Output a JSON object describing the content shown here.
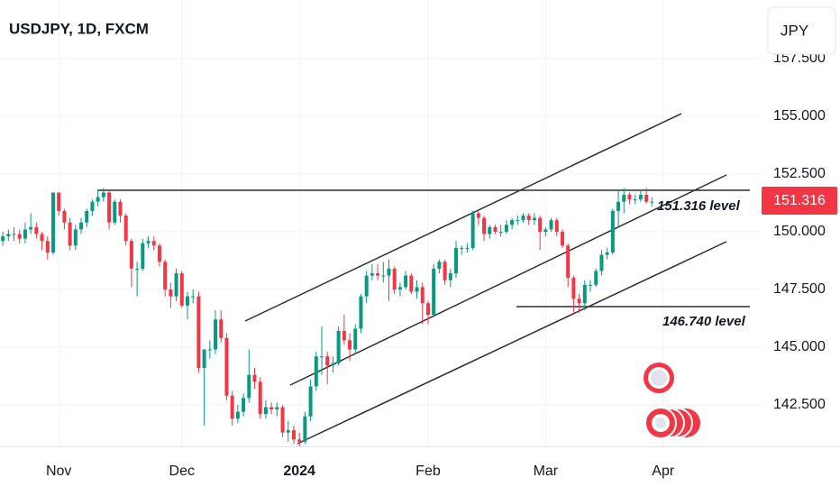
{
  "chart_data": {
    "type": "candlestick",
    "title": "USDJPY, 1D, FXCM",
    "currency_button": "JPY",
    "last_price_label": "151.316",
    "annotations": [
      "151.316 level",
      "146.740 level"
    ],
    "up_color": "#089981",
    "down_color": "#f23645",
    "grid": true,
    "ylim": [
      140.7,
      160.04
    ],
    "yticks": [
      {
        "value": 157.5,
        "label": "157.500"
      },
      {
        "value": 155,
        "label": "155.000"
      },
      {
        "value": 152.5,
        "label": "152.500"
      },
      {
        "value": 150,
        "label": "150.000"
      },
      {
        "value": 147.5,
        "label": "147.500"
      },
      {
        "value": 145,
        "label": "145.000"
      },
      {
        "value": 142.5,
        "label": "142.500"
      }
    ],
    "xlim": [
      -0.5,
      135.6
    ],
    "xticks": [
      {
        "value": 10,
        "label": "Nov"
      },
      {
        "value": 32,
        "label": "Dec"
      },
      {
        "value": 53,
        "label": "2024"
      },
      {
        "value": 76,
        "label": "Feb"
      },
      {
        "value": 97,
        "label": "Mar"
      },
      {
        "value": 118,
        "label": "Apr"
      }
    ],
    "candles": [
      [
        149.6,
        150.0,
        149.4,
        149.8
      ],
      [
        149.8,
        150.1,
        149.6,
        149.9
      ],
      [
        149.9,
        150.2,
        149.6,
        149.9
      ],
      [
        149.9,
        150.1,
        149.5,
        149.7
      ],
      [
        149.7,
        150.4,
        149.5,
        150.1
      ],
      [
        150.1,
        150.8,
        149.9,
        150.2
      ],
      [
        150.2,
        150.4,
        149.7,
        149.9
      ],
      [
        149.9,
        150.0,
        149.2,
        149.6
      ],
      [
        149.6,
        149.8,
        148.8,
        149.1
      ],
      [
        149.1,
        151.7,
        149.0,
        151.7
      ],
      [
        151.7,
        151.7,
        150.7,
        150.9
      ],
      [
        150.9,
        151.0,
        150.1,
        150.4
      ],
      [
        150.4,
        150.6,
        149.2,
        149.4
      ],
      [
        149.4,
        150.3,
        149.2,
        150.1
      ],
      [
        150.1,
        150.6,
        149.9,
        150.4
      ],
      [
        150.4,
        151.0,
        150.2,
        150.9
      ],
      [
        150.9,
        151.4,
        150.7,
        151.3
      ],
      [
        151.3,
        151.8,
        151.1,
        151.5
      ],
      [
        151.5,
        151.9,
        151.3,
        151.7
      ],
      [
        151.7,
        151.8,
        150.1,
        150.4
      ],
      [
        150.4,
        151.4,
        150.3,
        151.3
      ],
      [
        151.3,
        151.4,
        150.4,
        150.7
      ],
      [
        150.7,
        150.8,
        149.4,
        149.6
      ],
      [
        149.6,
        149.7,
        147.6,
        148.4
      ],
      [
        148.4,
        148.7,
        147.2,
        148.4
      ],
      [
        148.4,
        149.7,
        148.3,
        149.5
      ],
      [
        149.5,
        149.8,
        149.3,
        149.6
      ],
      [
        149.6,
        149.8,
        149.2,
        149.4
      ],
      [
        149.4,
        149.5,
        148.5,
        148.7
      ],
      [
        148.7,
        148.8,
        147.2,
        147.5
      ],
      [
        147.5,
        147.8,
        146.7,
        147.2
      ],
      [
        147.2,
        148.4,
        147.0,
        148.2
      ],
      [
        148.2,
        148.3,
        146.7,
        146.8
      ],
      [
        146.8,
        147.4,
        146.2,
        147.2
      ],
      [
        147.2,
        147.5,
        146.9,
        147.2
      ],
      [
        147.2,
        147.4,
        143.9,
        144.1
      ],
      [
        144.1,
        144.9,
        141.6,
        144.9
      ],
      [
        144.9,
        145.3,
        144.5,
        144.9
      ],
      [
        144.9,
        146.6,
        144.7,
        146.2
      ],
      [
        146.2,
        146.6,
        145.2,
        145.4
      ],
      [
        145.4,
        145.6,
        142.7,
        142.9
      ],
      [
        142.9,
        143.1,
        141.6,
        141.9
      ],
      [
        141.9,
        142.5,
        141.7,
        142.2
      ],
      [
        142.2,
        143.0,
        142.0,
        142.8
      ],
      [
        142.8,
        144.9,
        142.6,
        143.8
      ],
      [
        143.8,
        144.1,
        143.2,
        143.5
      ],
      [
        143.5,
        143.7,
        141.9,
        142.1
      ],
      [
        142.1,
        142.7,
        141.9,
        142.4
      ],
      [
        142.4,
        142.6,
        142.1,
        142.3
      ],
      [
        142.3,
        142.6,
        142.0,
        142.4
      ],
      [
        142.4,
        142.5,
        141.1,
        141.3
      ],
      [
        141.3,
        141.8,
        140.9,
        141.4
      ],
      [
        141.4,
        141.6,
        140.8,
        141.0
      ],
      [
        141.0,
        141.3,
        140.7,
        140.9
      ],
      [
        140.9,
        142.2,
        140.8,
        142.0
      ],
      [
        142.0,
        143.6,
        141.8,
        143.3
      ],
      [
        143.3,
        144.8,
        143.1,
        144.6
      ],
      [
        144.6,
        145.9,
        143.8,
        144.6
      ],
      [
        144.6,
        144.8,
        143.4,
        144.2
      ],
      [
        144.2,
        144.6,
        143.9,
        144.3
      ],
      [
        144.3,
        145.9,
        144.2,
        145.7
      ],
      [
        145.7,
        146.4,
        145.1,
        145.3
      ],
      [
        145.3,
        145.6,
        144.4,
        144.9
      ],
      [
        144.9,
        146.0,
        144.7,
        145.8
      ],
      [
        145.8,
        147.3,
        145.6,
        147.2
      ],
      [
        147.2,
        148.3,
        146.9,
        148.1
      ],
      [
        148.1,
        148.6,
        147.9,
        148.2
      ],
      [
        148.2,
        148.6,
        147.9,
        148.1
      ],
      [
        148.1,
        148.7,
        147.8,
        148.1
      ],
      [
        148.1,
        148.8,
        147.0,
        148.4
      ],
      [
        148.4,
        148.5,
        147.3,
        147.5
      ],
      [
        147.5,
        147.8,
        147.2,
        147.6
      ],
      [
        147.6,
        148.3,
        147.5,
        148.1
      ],
      [
        148.1,
        148.2,
        147.3,
        147.4
      ],
      [
        147.4,
        147.9,
        147.1,
        147.6
      ],
      [
        147.6,
        147.8,
        146.0,
        146.9
      ],
      [
        146.9,
        147.0,
        146.0,
        146.4
      ],
      [
        146.4,
        148.6,
        146.3,
        148.4
      ],
      [
        148.4,
        148.8,
        148.2,
        148.7
      ],
      [
        148.7,
        148.8,
        147.7,
        147.9
      ],
      [
        147.9,
        148.4,
        147.6,
        148.2
      ],
      [
        148.2,
        149.6,
        148.0,
        149.3
      ],
      [
        149.3,
        149.4,
        149.0,
        149.3
      ],
      [
        149.3,
        149.5,
        149.1,
        149.3
      ],
      [
        149.3,
        150.9,
        149.2,
        150.8
      ],
      [
        150.8,
        150.9,
        150.3,
        150.6
      ],
      [
        150.6,
        150.7,
        149.6,
        149.9
      ],
      [
        149.9,
        150.3,
        149.7,
        150.2
      ],
      [
        150.2,
        150.3,
        149.9,
        150.0
      ],
      [
        150.0,
        150.3,
        149.8,
        150.0
      ],
      [
        150.0,
        150.5,
        149.9,
        150.3
      ],
      [
        150.3,
        150.6,
        150.1,
        150.5
      ],
      [
        150.5,
        150.7,
        150.3,
        150.5
      ],
      [
        150.5,
        150.8,
        150.4,
        150.7
      ],
      [
        150.7,
        150.8,
        150.3,
        150.5
      ],
      [
        150.5,
        150.8,
        150.3,
        150.6
      ],
      [
        150.6,
        150.7,
        149.2,
        150.0
      ],
      [
        150.0,
        150.2,
        149.8,
        150.1
      ],
      [
        150.1,
        150.6,
        150.0,
        150.5
      ],
      [
        150.5,
        150.6,
        149.8,
        150.0
      ],
      [
        150.0,
        150.1,
        149.3,
        149.4
      ],
      [
        149.4,
        149.5,
        147.6,
        148.0
      ],
      [
        148.0,
        148.1,
        146.5,
        147.1
      ],
      [
        147.1,
        147.3,
        146.5,
        146.9
      ],
      [
        146.9,
        147.9,
        146.6,
        147.7
      ],
      [
        147.7,
        147.9,
        147.4,
        147.7
      ],
      [
        147.7,
        148.4,
        147.6,
        148.3
      ],
      [
        148.3,
        149.2,
        148.1,
        149.0
      ],
      [
        149.0,
        149.3,
        148.8,
        149.1
      ],
      [
        149.1,
        151.0,
        149.0,
        150.9
      ],
      [
        150.9,
        151.8,
        150.2,
        151.3
      ],
      [
        151.3,
        151.9,
        150.8,
        151.6
      ],
      [
        151.6,
        151.7,
        151.2,
        151.4
      ],
      [
        151.4,
        151.6,
        151.2,
        151.4
      ],
      [
        151.4,
        151.8,
        151.3,
        151.6
      ],
      [
        151.6,
        151.9,
        151.2,
        151.3
      ],
      [
        151.3,
        151.5,
        151.1,
        151.3
      ]
    ]
  }
}
